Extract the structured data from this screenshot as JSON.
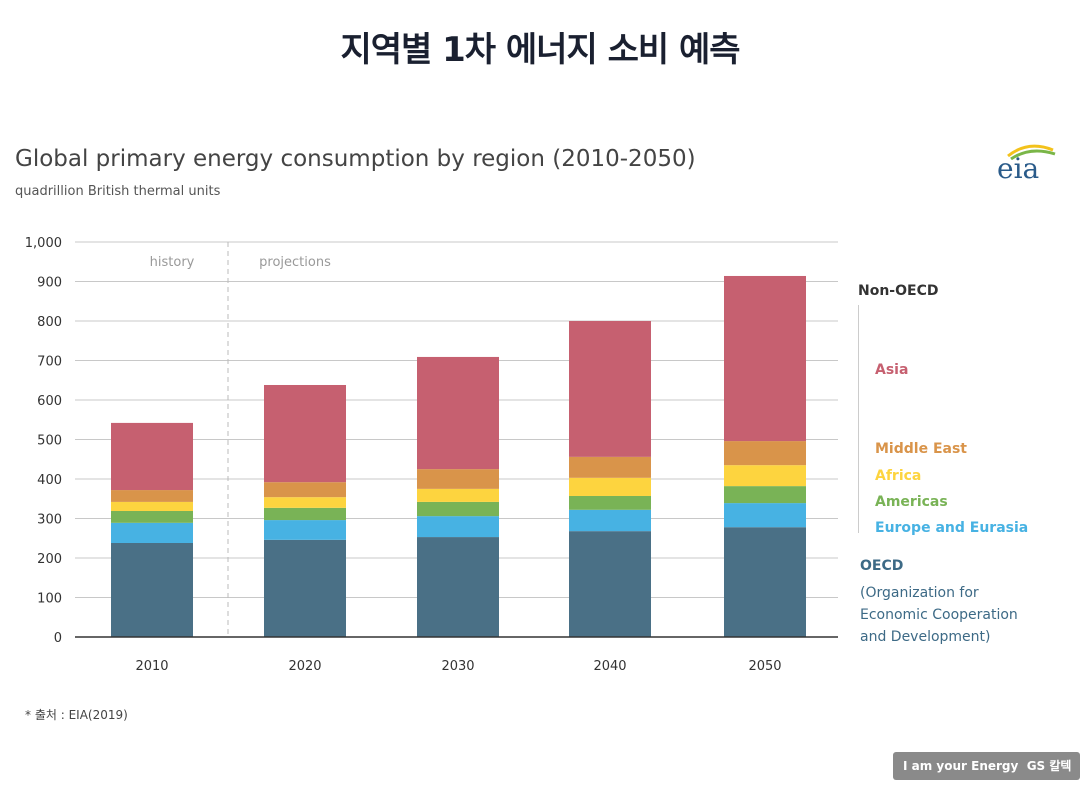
{
  "page_title": "지역별 1차 에너지 소비 예측",
  "source": "* 출처 : EIA(2019)",
  "logo_text": "eia",
  "badge": {
    "slogan": "I am your Energy",
    "brand": "GS 칼텍스"
  },
  "chart_data": {
    "type": "bar",
    "stacked": true,
    "title": "Global primary energy consumption by region (2010-2050)",
    "subtitle": "quadrillion British thermal units",
    "categories": [
      "2010",
      "2020",
      "2030",
      "2040",
      "2050"
    ],
    "ylim": [
      0,
      1000
    ],
    "yticks": [
      "0",
      "100",
      "200",
      "300",
      "400",
      "500",
      "600",
      "700",
      "800",
      "900",
      "1,000"
    ],
    "annotations": {
      "history": "history",
      "projections": "projections"
    },
    "legend": {
      "group_non_oecd": "Non-OECD",
      "oecd": "OECD",
      "oecd_desc": [
        "(Organization for",
        "Economic Cooperation",
        "and Development)"
      ]
    },
    "series": [
      {
        "name": "OECD",
        "color": "#4a7086",
        "values": [
          238,
          246,
          253,
          268,
          278
        ]
      },
      {
        "name": "Europe and Eurasia",
        "color": "#47b2e3",
        "values": [
          51,
          50,
          53,
          54,
          61
        ]
      },
      {
        "name": "Americas",
        "color": "#79b356",
        "values": [
          30,
          31,
          36,
          35,
          43
        ]
      },
      {
        "name": "Africa",
        "color": "#fdd43f",
        "values": [
          23,
          27,
          33,
          46,
          53
        ]
      },
      {
        "name": "Middle East",
        "color": "#d9944a",
        "values": [
          30,
          38,
          50,
          53,
          61
        ]
      },
      {
        "name": "Asia",
        "color": "#c66070",
        "values": [
          170,
          246,
          284,
          344,
          418
        ]
      }
    ]
  }
}
